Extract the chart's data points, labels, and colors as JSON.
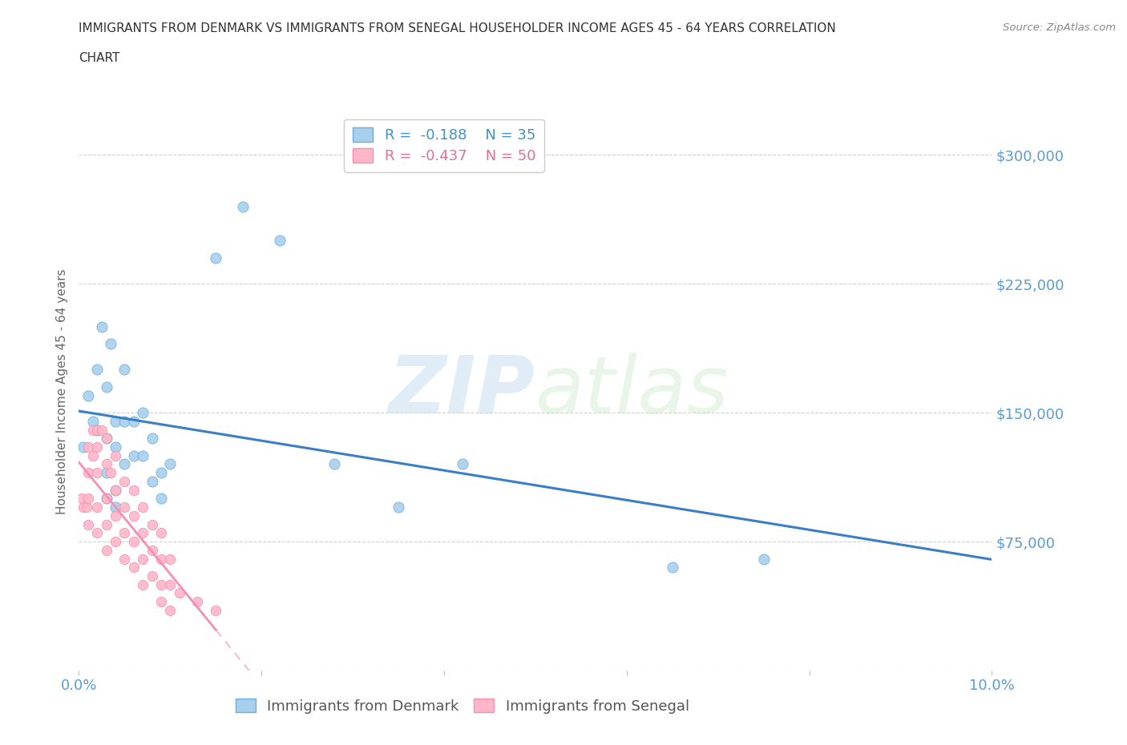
{
  "title_line1": "IMMIGRANTS FROM DENMARK VS IMMIGRANTS FROM SENEGAL HOUSEHOLDER INCOME AGES 45 - 64 YEARS CORRELATION",
  "title_line2": "CHART",
  "source_text": "Source: ZipAtlas.com",
  "ylabel": "Householder Income Ages 45 - 64 years",
  "xlim": [
    0.0,
    0.1
  ],
  "ylim": [
    0,
    325000
  ],
  "yticks": [
    0,
    75000,
    150000,
    225000,
    300000
  ],
  "ytick_labels": [
    "",
    "$75,000",
    "$150,000",
    "$225,000",
    "$300,000"
  ],
  "xticks": [
    0.0,
    0.02,
    0.04,
    0.06,
    0.08,
    0.1
  ],
  "xtick_labels": [
    "0.0%",
    "",
    "",
    "",
    "",
    "10.0%"
  ],
  "watermark_zip": "ZIP",
  "watermark_atlas": "atlas",
  "denmark_color": "#a8d0ee",
  "denmark_edge": "#6baed6",
  "senegal_color": "#ffb6c8",
  "senegal_edge": "#f48fb1",
  "denmark_line_color": "#3a7ec6",
  "senegal_line_color": "#f48fb1",
  "legend_r_denmark": "-0.188",
  "legend_n_denmark": "35",
  "legend_r_senegal": "-0.437",
  "legend_n_senegal": "50",
  "denmark_x": [
    0.0005,
    0.001,
    0.0015,
    0.002,
    0.002,
    0.0025,
    0.003,
    0.003,
    0.003,
    0.003,
    0.0035,
    0.004,
    0.004,
    0.004,
    0.004,
    0.005,
    0.005,
    0.005,
    0.006,
    0.006,
    0.007,
    0.007,
    0.008,
    0.008,
    0.009,
    0.009,
    0.01,
    0.015,
    0.018,
    0.022,
    0.028,
    0.035,
    0.042,
    0.065,
    0.075
  ],
  "denmark_y": [
    130000,
    160000,
    145000,
    140000,
    175000,
    200000,
    165000,
    135000,
    115000,
    100000,
    190000,
    145000,
    130000,
    105000,
    95000,
    175000,
    145000,
    120000,
    145000,
    125000,
    150000,
    125000,
    135000,
    110000,
    115000,
    100000,
    120000,
    240000,
    270000,
    250000,
    120000,
    95000,
    120000,
    60000,
    65000
  ],
  "senegal_x": [
    0.0003,
    0.0005,
    0.0008,
    0.001,
    0.001,
    0.001,
    0.001,
    0.0015,
    0.0015,
    0.002,
    0.002,
    0.002,
    0.002,
    0.002,
    0.0025,
    0.003,
    0.003,
    0.003,
    0.003,
    0.003,
    0.0035,
    0.004,
    0.004,
    0.004,
    0.004,
    0.005,
    0.005,
    0.005,
    0.005,
    0.006,
    0.006,
    0.006,
    0.006,
    0.007,
    0.007,
    0.007,
    0.007,
    0.008,
    0.008,
    0.008,
    0.009,
    0.009,
    0.009,
    0.009,
    0.01,
    0.01,
    0.01,
    0.011,
    0.013,
    0.015
  ],
  "senegal_y": [
    100000,
    95000,
    95000,
    130000,
    115000,
    100000,
    85000,
    140000,
    125000,
    140000,
    130000,
    115000,
    95000,
    80000,
    140000,
    135000,
    120000,
    100000,
    85000,
    70000,
    115000,
    125000,
    105000,
    90000,
    75000,
    110000,
    95000,
    80000,
    65000,
    105000,
    90000,
    75000,
    60000,
    95000,
    80000,
    65000,
    50000,
    85000,
    70000,
    55000,
    80000,
    65000,
    50000,
    40000,
    65000,
    50000,
    35000,
    45000,
    40000,
    35000
  ],
  "bg_color": "#ffffff",
  "grid_color": "#d0d0d0",
  "axis_label_color": "#5b9bd5",
  "tick_label_color": "#5b9bd5"
}
